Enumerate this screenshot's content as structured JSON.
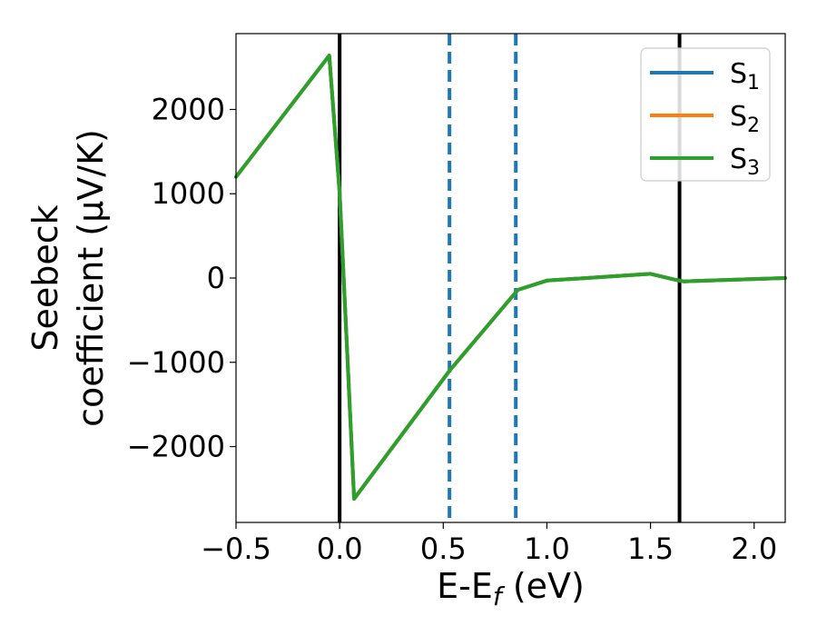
{
  "chart_data": {
    "type": "line",
    "xlabel": "E-E",
    "xlabel_sub": "f",
    "xlabel_unit": " (eV)",
    "ylabel_line1": "Seebeck",
    "ylabel_line2": "coefficient  (μV/K)",
    "xlim": [
      -0.5,
      2.15
    ],
    "ylim": [
      -2900,
      2900
    ],
    "xticks": [
      -0.5,
      0.0,
      0.5,
      1.0,
      1.5,
      2.0
    ],
    "xtick_labels": [
      "−0.5",
      "0.0",
      "0.5",
      "1.0",
      "1.5",
      "2.0"
    ],
    "yticks": [
      -2000,
      -1000,
      0,
      1000,
      2000
    ],
    "ytick_labels": [
      "−2000",
      "−1000",
      "0",
      "1000",
      "2000"
    ],
    "grid": false,
    "legend_position": "top-right",
    "series": [
      {
        "name": "S",
        "name_sub": "1",
        "color": "#1f77b4",
        "x": [
          -0.5,
          -0.05,
          0.0,
          0.07,
          0.53,
          0.86,
          1.0,
          1.5,
          1.62,
          1.66,
          2.15
        ],
        "y": [
          1200,
          2640,
          1000,
          -2620,
          -1100,
          -140,
          -30,
          50,
          -20,
          -40,
          0
        ]
      },
      {
        "name": "S",
        "name_sub": "2",
        "color": "#ff7f0e",
        "x": [
          -0.5,
          -0.05,
          0.0,
          0.07,
          0.53,
          0.86,
          1.0,
          1.5,
          1.62,
          1.66,
          2.15
        ],
        "y": [
          1200,
          2640,
          1000,
          -2620,
          -1100,
          -140,
          -30,
          50,
          -20,
          -40,
          0
        ]
      },
      {
        "name": "S",
        "name_sub": "3",
        "color": "#2ca02c",
        "x": [
          -0.5,
          -0.05,
          0.0,
          0.07,
          0.53,
          0.86,
          1.0,
          1.5,
          1.62,
          1.66,
          2.15
        ],
        "y": [
          1200,
          2640,
          1000,
          -2620,
          -1100,
          -140,
          -30,
          50,
          -20,
          -40,
          0
        ]
      }
    ],
    "vlines": [
      {
        "x": 0.0,
        "style": "solid",
        "color": "#000000"
      },
      {
        "x": 1.64,
        "style": "solid",
        "color": "#000000"
      },
      {
        "x": 0.53,
        "style": "dashed",
        "color": "#1f77b4"
      },
      {
        "x": 0.85,
        "style": "dashed",
        "color": "#1f77b4"
      }
    ]
  }
}
